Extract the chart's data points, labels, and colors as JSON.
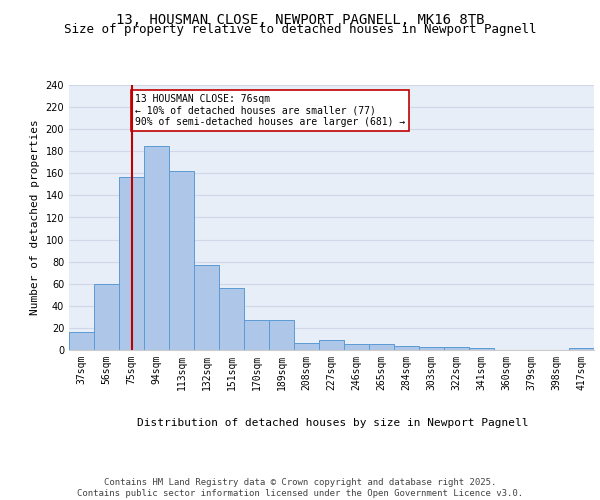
{
  "title_line1": "13, HOUSMAN CLOSE, NEWPORT PAGNELL, MK16 8TB",
  "title_line2": "Size of property relative to detached houses in Newport Pagnell",
  "xlabel": "Distribution of detached houses by size in Newport Pagnell",
  "ylabel": "Number of detached properties",
  "categories": [
    "37sqm",
    "56sqm",
    "75sqm",
    "94sqm",
    "113sqm",
    "132sqm",
    "151sqm",
    "170sqm",
    "189sqm",
    "208sqm",
    "227sqm",
    "246sqm",
    "265sqm",
    "284sqm",
    "303sqm",
    "322sqm",
    "341sqm",
    "360sqm",
    "379sqm",
    "398sqm",
    "417sqm"
  ],
  "values": [
    16,
    60,
    157,
    185,
    162,
    77,
    56,
    27,
    27,
    6,
    9,
    5,
    5,
    4,
    3,
    3,
    2,
    0,
    0,
    0,
    2
  ],
  "bar_color": "#aec6e8",
  "bar_edge_color": "#5b9bd5",
  "vline_x": 2,
  "vline_color": "#c00000",
  "annotation_text": "13 HOUSMAN CLOSE: 76sqm\n← 10% of detached houses are smaller (77)\n90% of semi-detached houses are larger (681) →",
  "annotation_box_color": "#ffffff",
  "annotation_box_edgecolor": "#c00000",
  "ylim": [
    0,
    240
  ],
  "yticks": [
    0,
    20,
    40,
    60,
    80,
    100,
    120,
    140,
    160,
    180,
    200,
    220,
    240
  ],
  "grid_color": "#d0d8e8",
  "bg_color": "#e8eef8",
  "footer_text": "Contains HM Land Registry data © Crown copyright and database right 2025.\nContains public sector information licensed under the Open Government Licence v3.0.",
  "title_fontsize": 10,
  "subtitle_fontsize": 9,
  "axis_label_fontsize": 8,
  "tick_fontsize": 7,
  "annotation_fontsize": 7,
  "footer_fontsize": 6.5
}
